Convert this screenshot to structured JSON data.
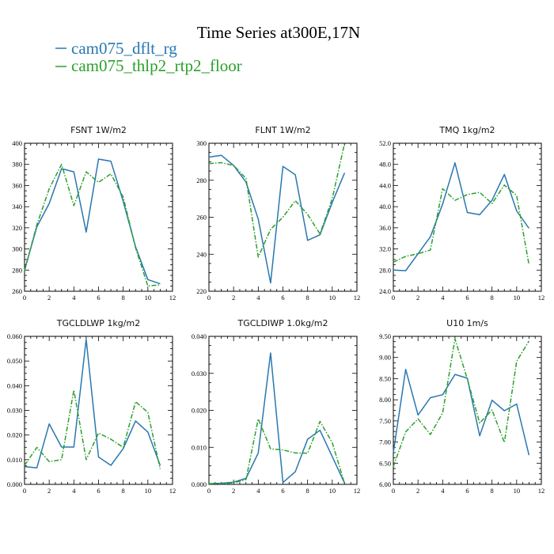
{
  "figure": {
    "title": "Time Series at300E,17N"
  },
  "legend": [
    {
      "label": "cam075_dflt_rg",
      "color": "#2878b0",
      "dash": "solid"
    },
    {
      "label": "cam075_thlp2_rtp2_floor",
      "color": "#2ca02c",
      "dash": "dashdot"
    }
  ],
  "chart_data": [
    {
      "type": "line",
      "title": "FSNT   1W/m2",
      "xlim": [
        0,
        12
      ],
      "ylim": [
        260,
        400
      ],
      "xticks": [
        0,
        2,
        4,
        6,
        8,
        10,
        12
      ],
      "yticks": [
        "260",
        "280",
        "300",
        "320",
        "340",
        "360",
        "380",
        "400"
      ],
      "x": [
        0,
        1,
        2,
        3,
        4,
        5,
        6,
        7,
        8,
        9,
        10,
        11
      ],
      "series": [
        {
          "name": "cam075_dflt_rg",
          "values": [
            280,
            321,
            343,
            376,
            373,
            316,
            385,
            383,
            345,
            302,
            271,
            267
          ]
        },
        {
          "name": "cam075_thlp2_rtp2_floor",
          "values": [
            279,
            323,
            357,
            380,
            341,
            373,
            363,
            371,
            349,
            301,
            265,
            266
          ]
        }
      ]
    },
    {
      "type": "line",
      "title": "FLNT   1W/m2",
      "xlim": [
        0,
        12
      ],
      "ylim": [
        220,
        300
      ],
      "xticks": [
        0,
        2,
        4,
        6,
        8,
        10,
        12
      ],
      "yticks": [
        "220",
        "240",
        "260",
        "280",
        "300"
      ],
      "x": [
        0,
        1,
        2,
        3,
        4,
        5,
        6,
        7,
        8,
        9,
        10,
        11
      ],
      "series": [
        {
          "name": "cam075_dflt_rg",
          "values": [
            292.5,
            293.5,
            288,
            279,
            259,
            224.5,
            287.5,
            283,
            247.5,
            250.5,
            268,
            284
          ]
        },
        {
          "name": "cam075_thlp2_rtp2_floor",
          "values": [
            289,
            289.5,
            288,
            281,
            238.5,
            253.5,
            260,
            269,
            261.5,
            251,
            270,
            300
          ]
        }
      ]
    },
    {
      "type": "line",
      "title": "TMQ   1kg/m2",
      "xlim": [
        0,
        12
      ],
      "ylim": [
        24,
        52
      ],
      "xticks": [
        0,
        2,
        4,
        6,
        8,
        10,
        12
      ],
      "yticks": [
        "24.0",
        "28.0",
        "32.0",
        "36.0",
        "40.0",
        "44.0",
        "48.0",
        "52.0"
      ],
      "x": [
        0,
        1,
        2,
        3,
        4,
        5,
        6,
        7,
        8,
        9,
        10,
        11
      ],
      "series": [
        {
          "name": "cam075_dflt_rg",
          "values": [
            28.0,
            27.9,
            31.1,
            34.3,
            40.5,
            48.3,
            38.9,
            38.5,
            41.2,
            46.1,
            39.2,
            35.9
          ]
        },
        {
          "name": "cam075_thlp2_rtp2_floor",
          "values": [
            29.5,
            30.6,
            31.1,
            31.8,
            43.4,
            41.2,
            42.3,
            42.7,
            40.6,
            44.1,
            42.1,
            29.0
          ]
        }
      ]
    },
    {
      "type": "line",
      "title": "TGCLDLWP   1kg/m2",
      "xlim": [
        0,
        12
      ],
      "ylim": [
        0,
        0.06
      ],
      "xticks": [
        0,
        2,
        4,
        6,
        8,
        10,
        12
      ],
      "yticks": [
        "0.000",
        "0.010",
        "0.020",
        "0.030",
        "0.040",
        "0.050",
        "0.060"
      ],
      "x": [
        0,
        1,
        2,
        3,
        4,
        5,
        6,
        7,
        8,
        9,
        10,
        11
      ],
      "series": [
        {
          "name": "cam075_dflt_rg",
          "values": [
            0.0072,
            0.0067,
            0.0245,
            0.0151,
            0.0151,
            0.0588,
            0.0111,
            0.0077,
            0.0145,
            0.0257,
            0.0212,
            0.0077
          ]
        },
        {
          "name": "cam075_thlp2_rtp2_floor",
          "values": [
            0.0077,
            0.015,
            0.0092,
            0.01,
            0.0382,
            0.01,
            0.0208,
            0.0183,
            0.015,
            0.0335,
            0.0292,
            0.0062
          ]
        }
      ]
    },
    {
      "type": "line",
      "title": "TGCLDIWP   1.0kg/m2",
      "xlim": [
        0,
        12
      ],
      "ylim": [
        0,
        0.04
      ],
      "xticks": [
        0,
        2,
        4,
        6,
        8,
        10,
        12
      ],
      "yticks": [
        "0.000",
        "0.010",
        "0.020",
        "0.030",
        "0.040"
      ],
      "x": [
        0,
        1,
        2,
        3,
        4,
        5,
        6,
        7,
        8,
        9,
        10,
        11
      ],
      "series": [
        {
          "name": "cam075_dflt_rg",
          "values": [
            0.0002,
            0.0003,
            0.0006,
            0.0016,
            0.0085,
            0.0355,
            0.0005,
            0.0034,
            0.0122,
            0.0146,
            0.0075,
            0.0003
          ]
        },
        {
          "name": "cam075_thlp2_rtp2_floor",
          "values": [
            0.0002,
            0.0002,
            0.0004,
            0.0013,
            0.0177,
            0.0096,
            0.0093,
            0.0085,
            0.0084,
            0.017,
            0.0113,
            0.0002
          ]
        }
      ]
    },
    {
      "type": "line",
      "title": "U10   1m/s",
      "xlim": [
        0,
        12
      ],
      "ylim": [
        6,
        9.5
      ],
      "xticks": [
        0,
        2,
        4,
        6,
        8,
        10,
        12
      ],
      "yticks": [
        "6.00",
        "6.50",
        "7.00",
        "7.50",
        "8.00",
        "8.50",
        "9.00",
        "9.50"
      ],
      "x": [
        0,
        1,
        2,
        3,
        4,
        5,
        6,
        7,
        8,
        9,
        10,
        11
      ],
      "series": [
        {
          "name": "cam075_dflt_rg",
          "values": [
            6.75,
            8.72,
            7.64,
            8.05,
            8.12,
            8.6,
            8.51,
            7.15,
            7.99,
            7.74,
            7.9,
            6.69
          ]
        },
        {
          "name": "cam075_thlp2_rtp2_floor",
          "values": [
            6.42,
            7.24,
            7.55,
            7.18,
            7.69,
            9.44,
            8.49,
            7.45,
            7.76,
            6.99,
            8.91,
            9.39
          ]
        }
      ]
    }
  ]
}
